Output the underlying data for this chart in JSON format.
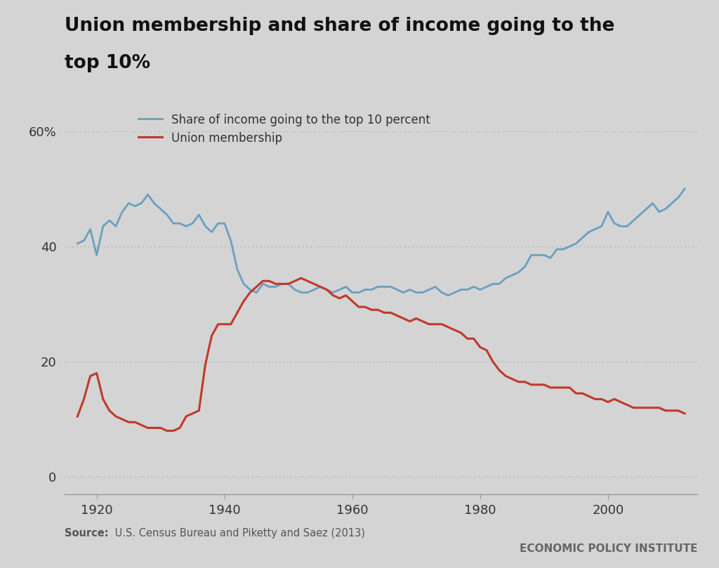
{
  "title_line1": "Union membership and share of income going to the",
  "title_line2": "top 10%",
  "background_color": "#d4d4d4",
  "plot_bg_color": "#d4d4d4",
  "source_bold": "Source:",
  "source_text": " U.S. Census Bureau and Piketty and Saez (2013)",
  "footer_text": "ECONOMIC POLICY INSTITUTE",
  "legend_blue": "Share of income going to the top 10 percent",
  "legend_red": "Union membership",
  "blue_color": "#6a9fc0",
  "red_color": "#c0392b",
  "yticks": [
    0,
    20,
    40,
    60
  ],
  "ylim": [
    -3,
    67
  ],
  "xlim": [
    1915,
    2014
  ],
  "xticks": [
    1920,
    1940,
    1960,
    1980,
    2000
  ],
  "income_top10": [
    [
      1917,
      40.5
    ],
    [
      1918,
      41.0
    ],
    [
      1919,
      43.0
    ],
    [
      1920,
      38.5
    ],
    [
      1921,
      43.5
    ],
    [
      1922,
      44.5
    ],
    [
      1923,
      43.5
    ],
    [
      1924,
      46.0
    ],
    [
      1925,
      47.5
    ],
    [
      1926,
      47.0
    ],
    [
      1927,
      47.5
    ],
    [
      1928,
      49.0
    ],
    [
      1929,
      47.5
    ],
    [
      1930,
      46.5
    ],
    [
      1931,
      45.5
    ],
    [
      1932,
      44.0
    ],
    [
      1933,
      44.0
    ],
    [
      1934,
      43.5
    ],
    [
      1935,
      44.0
    ],
    [
      1936,
      45.5
    ],
    [
      1937,
      43.5
    ],
    [
      1938,
      42.5
    ],
    [
      1939,
      44.0
    ],
    [
      1940,
      44.0
    ],
    [
      1941,
      41.0
    ],
    [
      1942,
      36.0
    ],
    [
      1943,
      33.5
    ],
    [
      1944,
      32.5
    ],
    [
      1945,
      32.0
    ],
    [
      1946,
      33.5
    ],
    [
      1947,
      33.0
    ],
    [
      1948,
      33.0
    ],
    [
      1949,
      33.5
    ],
    [
      1950,
      33.5
    ],
    [
      1951,
      32.5
    ],
    [
      1952,
      32.0
    ],
    [
      1953,
      32.0
    ],
    [
      1954,
      32.5
    ],
    [
      1955,
      33.0
    ],
    [
      1956,
      32.5
    ],
    [
      1957,
      32.0
    ],
    [
      1958,
      32.5
    ],
    [
      1959,
      33.0
    ],
    [
      1960,
      32.0
    ],
    [
      1961,
      32.0
    ],
    [
      1962,
      32.5
    ],
    [
      1963,
      32.5
    ],
    [
      1964,
      33.0
    ],
    [
      1965,
      33.0
    ],
    [
      1966,
      33.0
    ],
    [
      1967,
      32.5
    ],
    [
      1968,
      32.0
    ],
    [
      1969,
      32.5
    ],
    [
      1970,
      32.0
    ],
    [
      1971,
      32.0
    ],
    [
      1972,
      32.5
    ],
    [
      1973,
      33.0
    ],
    [
      1974,
      32.0
    ],
    [
      1975,
      31.5
    ],
    [
      1976,
      32.0
    ],
    [
      1977,
      32.5
    ],
    [
      1978,
      32.5
    ],
    [
      1979,
      33.0
    ],
    [
      1980,
      32.5
    ],
    [
      1981,
      33.0
    ],
    [
      1982,
      33.5
    ],
    [
      1983,
      33.5
    ],
    [
      1984,
      34.5
    ],
    [
      1985,
      35.0
    ],
    [
      1986,
      35.5
    ],
    [
      1987,
      36.5
    ],
    [
      1988,
      38.5
    ],
    [
      1989,
      38.5
    ],
    [
      1990,
      38.5
    ],
    [
      1991,
      38.0
    ],
    [
      1992,
      39.5
    ],
    [
      1993,
      39.5
    ],
    [
      1994,
      40.0
    ],
    [
      1995,
      40.5
    ],
    [
      1996,
      41.5
    ],
    [
      1997,
      42.5
    ],
    [
      1998,
      43.0
    ],
    [
      1999,
      43.5
    ],
    [
      2000,
      46.0
    ],
    [
      2001,
      44.0
    ],
    [
      2002,
      43.5
    ],
    [
      2003,
      43.5
    ],
    [
      2004,
      44.5
    ],
    [
      2005,
      45.5
    ],
    [
      2006,
      46.5
    ],
    [
      2007,
      47.5
    ],
    [
      2008,
      46.0
    ],
    [
      2009,
      46.5
    ],
    [
      2010,
      47.5
    ],
    [
      2011,
      48.5
    ],
    [
      2012,
      50.0
    ]
  ],
  "union_membership": [
    [
      1917,
      10.5
    ],
    [
      1918,
      13.5
    ],
    [
      1919,
      17.5
    ],
    [
      1920,
      18.0
    ],
    [
      1921,
      13.5
    ],
    [
      1922,
      11.5
    ],
    [
      1923,
      10.5
    ],
    [
      1924,
      10.0
    ],
    [
      1925,
      9.5
    ],
    [
      1926,
      9.5
    ],
    [
      1927,
      9.0
    ],
    [
      1928,
      8.5
    ],
    [
      1929,
      8.5
    ],
    [
      1930,
      8.5
    ],
    [
      1931,
      8.0
    ],
    [
      1932,
      8.0
    ],
    [
      1933,
      8.5
    ],
    [
      1934,
      10.5
    ],
    [
      1935,
      11.0
    ],
    [
      1936,
      11.5
    ],
    [
      1937,
      19.5
    ],
    [
      1938,
      24.5
    ],
    [
      1939,
      26.5
    ],
    [
      1940,
      26.5
    ],
    [
      1941,
      26.5
    ],
    [
      1942,
      28.5
    ],
    [
      1943,
      30.5
    ],
    [
      1944,
      32.0
    ],
    [
      1945,
      33.0
    ],
    [
      1946,
      34.0
    ],
    [
      1947,
      34.0
    ],
    [
      1948,
      33.5
    ],
    [
      1949,
      33.5
    ],
    [
      1950,
      33.5
    ],
    [
      1951,
      34.0
    ],
    [
      1952,
      34.5
    ],
    [
      1953,
      34.0
    ],
    [
      1954,
      33.5
    ],
    [
      1955,
      33.0
    ],
    [
      1956,
      32.5
    ],
    [
      1957,
      31.5
    ],
    [
      1958,
      31.0
    ],
    [
      1959,
      31.5
    ],
    [
      1960,
      30.5
    ],
    [
      1961,
      29.5
    ],
    [
      1962,
      29.5
    ],
    [
      1963,
      29.0
    ],
    [
      1964,
      29.0
    ],
    [
      1965,
      28.5
    ],
    [
      1966,
      28.5
    ],
    [
      1967,
      28.0
    ],
    [
      1968,
      27.5
    ],
    [
      1969,
      27.0
    ],
    [
      1970,
      27.5
    ],
    [
      1971,
      27.0
    ],
    [
      1972,
      26.5
    ],
    [
      1973,
      26.5
    ],
    [
      1974,
      26.5
    ],
    [
      1975,
      26.0
    ],
    [
      1976,
      25.5
    ],
    [
      1977,
      25.0
    ],
    [
      1978,
      24.0
    ],
    [
      1979,
      24.0
    ],
    [
      1980,
      22.5
    ],
    [
      1981,
      22.0
    ],
    [
      1982,
      20.0
    ],
    [
      1983,
      18.5
    ],
    [
      1984,
      17.5
    ],
    [
      1985,
      17.0
    ],
    [
      1986,
      16.5
    ],
    [
      1987,
      16.5
    ],
    [
      1988,
      16.0
    ],
    [
      1989,
      16.0
    ],
    [
      1990,
      16.0
    ],
    [
      1991,
      15.5
    ],
    [
      1992,
      15.5
    ],
    [
      1993,
      15.5
    ],
    [
      1994,
      15.5
    ],
    [
      1995,
      14.5
    ],
    [
      1996,
      14.5
    ],
    [
      1997,
      14.0
    ],
    [
      1998,
      13.5
    ],
    [
      1999,
      13.5
    ],
    [
      2000,
      13.0
    ],
    [
      2001,
      13.5
    ],
    [
      2002,
      13.0
    ],
    [
      2003,
      12.5
    ],
    [
      2004,
      12.0
    ],
    [
      2005,
      12.0
    ],
    [
      2006,
      12.0
    ],
    [
      2007,
      12.0
    ],
    [
      2008,
      12.0
    ],
    [
      2009,
      11.5
    ],
    [
      2010,
      11.5
    ],
    [
      2011,
      11.5
    ],
    [
      2012,
      11.0
    ]
  ]
}
